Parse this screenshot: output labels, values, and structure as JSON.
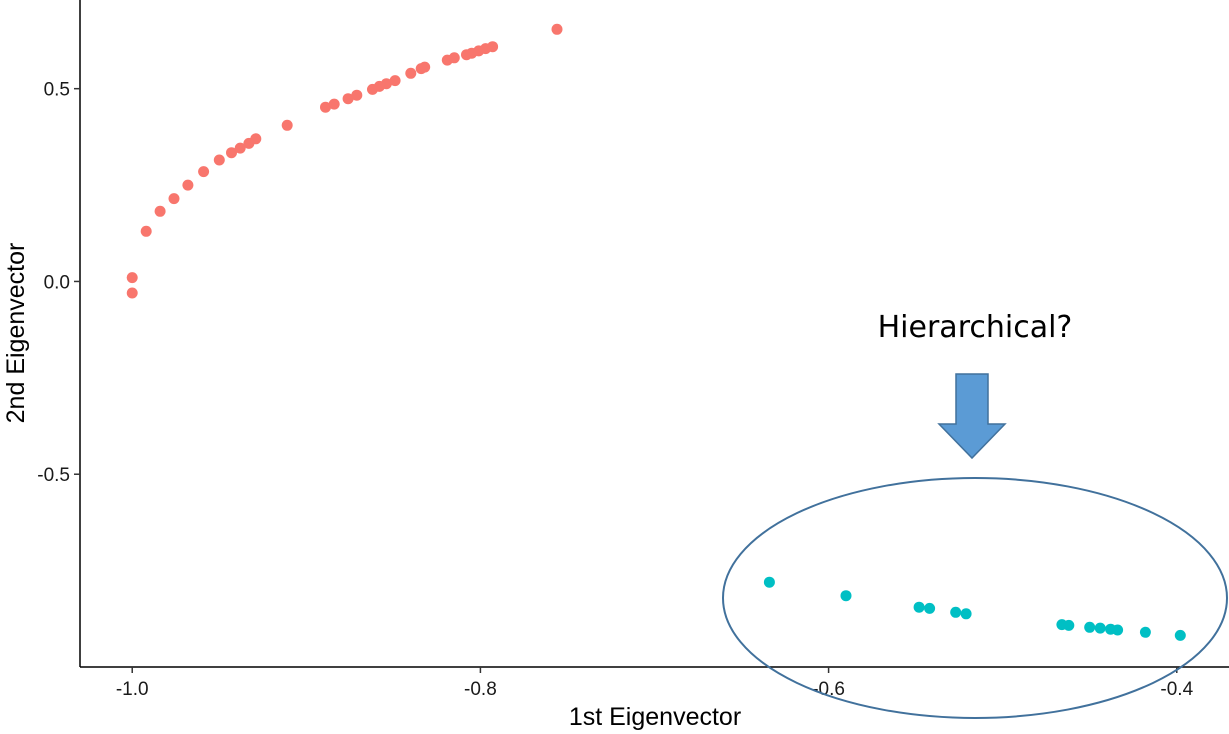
{
  "chart_data": {
    "type": "scatter",
    "xlabel": "1st Eigenvector",
    "ylabel": "2nd Eigenvector",
    "xlim": [
      -1.03,
      -0.37
    ],
    "ylim": [
      -1.0,
      0.73
    ],
    "x_ticks": [
      {
        "value": -1.0,
        "label": "-1.0"
      },
      {
        "value": -0.8,
        "label": "-0.8"
      },
      {
        "value": -0.6,
        "label": "-0.6"
      },
      {
        "value": -0.4,
        "label": "-0.4"
      }
    ],
    "y_ticks": [
      {
        "value": 0.5,
        "label": "0.5"
      },
      {
        "value": 0.0,
        "label": "0.0"
      },
      {
        "value": -0.5,
        "label": "-0.5"
      }
    ],
    "grid": false,
    "legend": "none",
    "series": [
      {
        "color": "#F8766D",
        "points": [
          [
            -1.0,
            0.01
          ],
          [
            -1.0,
            -0.03
          ],
          [
            -0.992,
            0.13
          ],
          [
            -0.984,
            0.182
          ],
          [
            -0.976,
            0.215
          ],
          [
            -0.968,
            0.25
          ],
          [
            -0.959,
            0.285
          ],
          [
            -0.95,
            0.315
          ],
          [
            -0.943,
            0.334
          ],
          [
            -0.938,
            0.346
          ],
          [
            -0.933,
            0.358
          ],
          [
            -0.929,
            0.37
          ],
          [
            -0.911,
            0.405
          ],
          [
            -0.889,
            0.452
          ],
          [
            -0.884,
            0.46
          ],
          [
            -0.876,
            0.474
          ],
          [
            -0.871,
            0.483
          ],
          [
            -0.862,
            0.498
          ],
          [
            -0.858,
            0.506
          ],
          [
            -0.854,
            0.513
          ],
          [
            -0.849,
            0.521
          ],
          [
            -0.84,
            0.54
          ],
          [
            -0.834,
            0.552
          ],
          [
            -0.832,
            0.556
          ],
          [
            -0.819,
            0.574
          ],
          [
            -0.815,
            0.58
          ],
          [
            -0.808,
            0.588
          ],
          [
            -0.805,
            0.592
          ],
          [
            -0.801,
            0.598
          ],
          [
            -0.797,
            0.604
          ],
          [
            -0.793,
            0.609
          ],
          [
            -0.756,
            0.654
          ]
        ]
      },
      {
        "color": "#00BFC4",
        "points": [
          [
            -0.634,
            -0.78
          ],
          [
            -0.59,
            -0.815
          ],
          [
            -0.548,
            -0.845
          ],
          [
            -0.542,
            -0.848
          ],
          [
            -0.527,
            -0.858
          ],
          [
            -0.521,
            -0.862
          ],
          [
            -0.466,
            -0.89
          ],
          [
            -0.462,
            -0.892
          ],
          [
            -0.45,
            -0.897
          ],
          [
            -0.444,
            -0.899
          ],
          [
            -0.438,
            -0.902
          ],
          [
            -0.434,
            -0.904
          ],
          [
            -0.418,
            -0.91
          ],
          [
            -0.398,
            -0.918
          ]
        ]
      }
    ],
    "annotation": {
      "text": "Hierarchical?",
      "arrow_color": "#5B9BD5",
      "ellipse_color": "#41719C"
    }
  }
}
